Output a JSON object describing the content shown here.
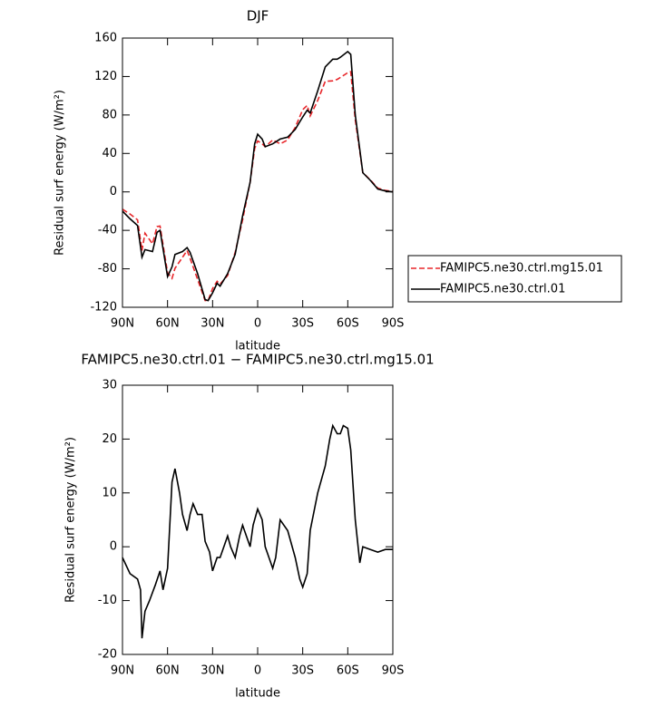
{
  "chart_data": [
    {
      "type": "line",
      "title": "DJF",
      "xlabel": "latitude",
      "ylabel": "Residual surf energy (W/m²)",
      "x": [
        90,
        85,
        80,
        77,
        75,
        70,
        67,
        65,
        60,
        57,
        55,
        50,
        47,
        45,
        40,
        35,
        33,
        30,
        27,
        25,
        20,
        15,
        10,
        5,
        2,
        0,
        -3,
        -5,
        -10,
        -15,
        -20,
        -25,
        -30,
        -33,
        -35,
        -40,
        -45,
        -50,
        -53,
        -55,
        -60,
        -62,
        -65,
        -70,
        -75,
        -80,
        -85,
        -90
      ],
      "series": [
        {
          "name": "FAMIPC5.ne30.ctrl.mg15.01",
          "color": "#e8262a",
          "dashed": true,
          "values": [
            -18,
            -23,
            -29,
            -61,
            -43,
            -54,
            -36,
            -35.5,
            -84,
            -90,
            -79.5,
            -68,
            -61,
            -69,
            -91,
            -113,
            -113,
            -100.5,
            -93,
            -96,
            -87,
            -63,
            -29,
            10,
            45,
            53,
            50,
            47,
            54,
            50,
            54,
            67,
            85.5,
            90,
            79,
            95,
            115,
            115.5,
            117,
            119,
            124,
            125,
            75,
            20,
            12.5,
            4,
            1.5,
            0.5
          ]
        },
        {
          "name": "FAMIPC5.ne30.ctrl.01",
          "color": "#000000",
          "dashed": false,
          "values": [
            -20,
            -28,
            -35,
            -68,
            -60,
            -62,
            -42,
            -40,
            -88,
            -78,
            -65,
            -62,
            -58,
            -63,
            -85,
            -112,
            -113,
            -105,
            -95,
            -98,
            -85,
            -65,
            -25,
            10,
            50,
            60,
            55,
            47,
            50,
            55,
            57,
            65,
            78,
            85,
            82,
            105,
            130,
            138,
            138,
            140,
            146,
            143,
            80,
            20,
            12,
            3,
            1,
            0
          ]
        }
      ],
      "xlim": [
        90,
        -90
      ],
      "xticks": [
        {
          "value": 90,
          "label": "90N"
        },
        {
          "value": 60,
          "label": "60N"
        },
        {
          "value": 30,
          "label": "30N"
        },
        0,
        {
          "value": -30,
          "label": "30S"
        },
        {
          "value": -60,
          "label": "60S"
        },
        {
          "value": -90,
          "label": "90S"
        }
      ],
      "ylim": [
        -120,
        160
      ],
      "yticks": [
        -120,
        -80,
        -40,
        0,
        40,
        80,
        120,
        160
      ],
      "legend": "right"
    },
    {
      "type": "line",
      "title": "FAMIPC5.ne30.ctrl.01 − FAMIPC5.ne30.ctrl.mg15.01",
      "xlabel": "latitude",
      "ylabel": "Residual surf energy (W/m²)",
      "x": [
        90,
        85,
        80,
        78,
        77,
        75,
        72,
        68,
        65,
        63,
        60,
        57,
        55,
        52,
        50,
        47,
        45,
        43,
        40,
        37,
        35,
        32,
        30,
        27,
        25,
        20,
        18,
        15,
        12,
        10,
        5,
        3,
        0,
        -3,
        -5,
        -10,
        -12,
        -15,
        -20,
        -25,
        -28,
        -30,
        -33,
        -35,
        -40,
        -45,
        -48,
        -50,
        -53,
        -55,
        -57,
        -60,
        -62,
        -65,
        -68,
        -70,
        -75,
        -80,
        -85,
        -90
      ],
      "series": [
        {
          "color": "#000000",
          "dashed": false,
          "values": [
            -2,
            -5,
            -6,
            -8,
            -17,
            -12,
            -10,
            -7,
            -4.5,
            -8,
            -4,
            12,
            14.5,
            10,
            6,
            3,
            6,
            8,
            6,
            6,
            1,
            -1,
            -4.5,
            -2,
            -2,
            2,
            0,
            -2,
            2,
            4,
            0,
            4,
            7,
            5,
            0,
            -4,
            -2,
            5,
            3,
            -2,
            -6,
            -7.5,
            -5,
            3,
            10,
            15,
            20,
            22.5,
            21,
            21,
            22.5,
            22,
            18,
            5,
            -3,
            0,
            -0.5,
            -1,
            -0.5,
            -0.5
          ]
        }
      ],
      "xlim": [
        90,
        -90
      ],
      "xticks": [
        {
          "value": 90,
          "label": "90N"
        },
        {
          "value": 60,
          "label": "60N"
        },
        {
          "value": 30,
          "label": "30N"
        },
        0,
        {
          "value": -30,
          "label": "30S"
        },
        {
          "value": -60,
          "label": "60S"
        },
        {
          "value": -90,
          "label": "90S"
        }
      ],
      "ylim": [
        -20,
        30
      ],
      "yticks": [
        -20,
        -10,
        0,
        10,
        20,
        30
      ]
    }
  ]
}
